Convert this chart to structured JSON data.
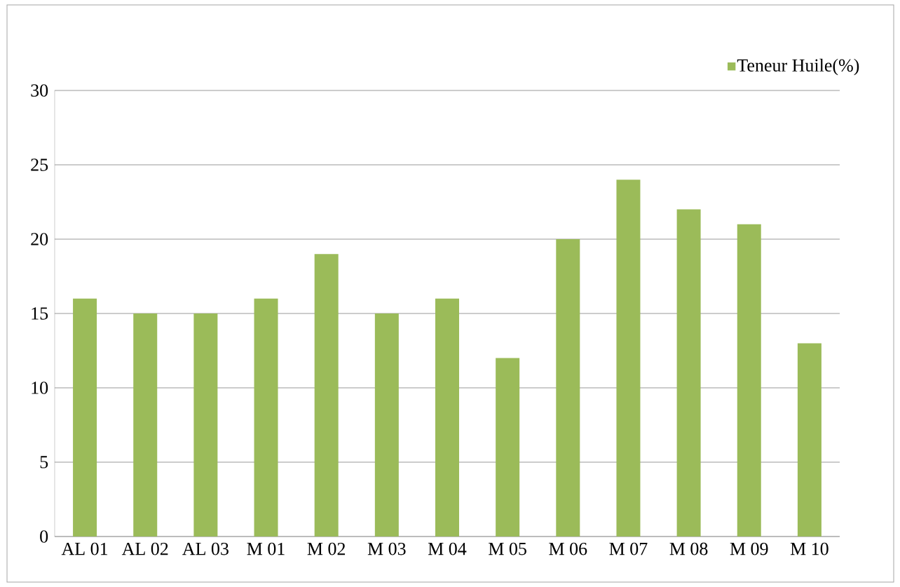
{
  "chart_data": {
    "type": "bar",
    "categories": [
      "AL 01",
      "AL 02",
      "AL 03",
      "M 01",
      "M 02",
      "M 03",
      "M 04",
      "M 05",
      "M 06",
      "M 07",
      "M 08",
      "M 09",
      "M 10"
    ],
    "series": [
      {
        "name": "Teneur Huile(%)",
        "color": "#9bbb59",
        "values": [
          16,
          15,
          15,
          16,
          19,
          15,
          16,
          12,
          20,
          24,
          22,
          21,
          13
        ]
      }
    ],
    "ylim": [
      0,
      30
    ],
    "yticks": [
      0,
      5,
      10,
      15,
      20,
      25,
      30
    ],
    "grid": "y",
    "legend": "top right"
  }
}
